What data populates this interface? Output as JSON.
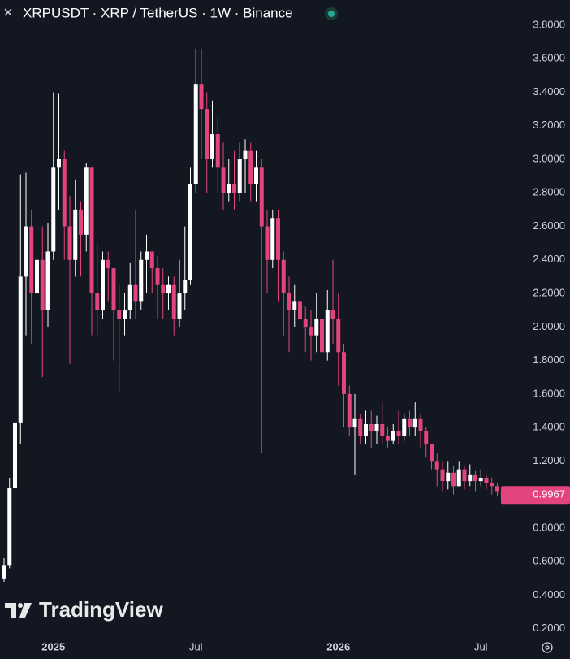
{
  "chart_data": {
    "type": "candlestick",
    "title": "XRPUSDT · XRP / TetherUS · 1W · Binance",
    "watermark": "TradingView",
    "categories": [
      null,
      null,
      null,
      null,
      null,
      null,
      null,
      null,
      null,
      "2025",
      null,
      null,
      null,
      null,
      null,
      null,
      null,
      null,
      null,
      null,
      null,
      null,
      null,
      null,
      null,
      null,
      null,
      null,
      null,
      null,
      null,
      null,
      null,
      null,
      null,
      "Jul",
      null,
      null,
      null,
      null,
      null,
      null,
      null,
      null,
      null,
      null,
      null,
      null,
      null,
      null,
      null,
      null,
      null,
      null,
      null,
      null,
      null,
      null,
      null,
      null,
      null,
      "2026",
      null,
      null,
      null,
      null,
      null,
      null,
      null,
      null,
      null,
      null,
      null,
      null,
      null,
      null,
      null,
      null,
      null,
      null,
      null,
      null,
      null,
      null,
      null,
      null,
      null,
      "Jul",
      null,
      null,
      null,
      null
    ],
    "open": [
      0.5,
      0.58,
      1.04,
      1.43,
      2.3,
      2.6,
      2.2,
      2.4,
      2.1,
      2.45,
      2.95,
      3.0,
      2.6,
      2.4,
      2.7,
      2.55,
      2.95,
      2.2,
      2.1,
      2.4,
      2.35,
      2.1,
      2.05,
      2.1,
      2.25,
      2.15,
      2.4,
      2.45,
      2.35,
      2.25,
      2.2,
      2.25,
      2.05,
      2.2,
      2.28,
      2.85,
      3.45,
      3.3,
      3.0,
      3.15,
      2.95,
      2.8,
      2.85,
      2.8,
      3.0,
      3.05,
      2.85,
      2.95,
      2.6,
      2.4,
      2.65,
      2.4,
      2.2,
      2.1,
      2.15,
      2.05,
      2.0,
      1.95,
      2.05,
      1.85,
      2.1,
      2.05,
      1.85,
      1.6,
      1.4,
      1.45,
      1.35,
      1.42,
      1.38,
      1.42,
      1.35,
      1.32,
      1.38,
      1.35,
      1.45,
      1.4,
      1.45,
      1.38,
      1.3,
      1.2,
      1.15,
      1.08,
      1.13,
      1.05,
      1.15,
      1.08,
      1.12,
      1.08,
      1.1,
      1.07,
      1.05,
      1.02
    ],
    "high": [
      0.62,
      1.1,
      1.62,
      2.91,
      2.92,
      2.7,
      2.45,
      2.6,
      2.62,
      3.4,
      3.39,
      3.05,
      2.78,
      2.88,
      2.75,
      2.98,
      2.95,
      2.5,
      2.45,
      2.45,
      2.35,
      2.25,
      2.2,
      2.38,
      2.7,
      2.45,
      2.55,
      2.45,
      2.42,
      2.35,
      2.3,
      2.3,
      2.4,
      2.6,
      2.95,
      3.66,
      3.66,
      3.4,
      3.35,
      3.25,
      3.1,
      3.0,
      3.05,
      3.1,
      3.12,
      3.1,
      3.05,
      3.0,
      2.7,
      2.7,
      2.7,
      2.45,
      2.3,
      2.25,
      2.2,
      2.12,
      2.1,
      2.2,
      2.05,
      2.22,
      2.4,
      2.2,
      1.9,
      1.65,
      1.6,
      1.48,
      1.5,
      1.5,
      1.47,
      1.55,
      1.4,
      1.42,
      1.5,
      1.48,
      1.5,
      1.55,
      1.48,
      1.4,
      1.3,
      1.25,
      1.2,
      1.2,
      1.17,
      1.2,
      1.17,
      1.18,
      1.14,
      1.15,
      1.12,
      1.1,
      1.07,
      1.03
    ],
    "low": [
      0.48,
      0.56,
      1.0,
      1.3,
      1.95,
      1.9,
      2.0,
      1.7,
      2.0,
      2.4,
      2.7,
      2.4,
      1.78,
      2.3,
      2.3,
      2.45,
      1.95,
      1.95,
      2.05,
      2.15,
      1.8,
      1.61,
      1.95,
      2.05,
      2.05,
      2.1,
      2.2,
      2.2,
      2.05,
      2.05,
      2.1,
      1.95,
      2.0,
      2.1,
      2.25,
      2.8,
      3.0,
      2.8,
      2.95,
      2.8,
      2.7,
      2.75,
      2.7,
      2.75,
      2.8,
      2.75,
      2.75,
      1.25,
      2.2,
      2.35,
      2.15,
      1.95,
      1.85,
      2.0,
      1.9,
      1.85,
      1.8,
      1.85,
      1.78,
      1.8,
      1.9,
      1.65,
      1.4,
      1.35,
      1.12,
      1.3,
      1.3,
      1.28,
      1.3,
      1.3,
      1.28,
      1.3,
      1.3,
      1.32,
      1.35,
      1.35,
      1.28,
      1.22,
      1.15,
      1.05,
      1.02,
      1.03,
      1.0,
      1.05,
      1.03,
      1.05,
      1.02,
      1.05,
      1.03,
      1.0,
      0.99,
      0.98
    ],
    "close": [
      0.58,
      1.04,
      1.43,
      2.3,
      2.6,
      2.2,
      2.4,
      2.1,
      2.45,
      2.95,
      3.0,
      2.6,
      2.4,
      2.7,
      2.55,
      2.95,
      2.2,
      2.1,
      2.4,
      2.35,
      2.1,
      2.05,
      2.1,
      2.25,
      2.15,
      2.4,
      2.45,
      2.35,
      2.25,
      2.2,
      2.25,
      2.05,
      2.2,
      2.28,
      2.85,
      3.45,
      3.3,
      3.0,
      3.15,
      2.95,
      2.8,
      2.85,
      2.8,
      3.0,
      3.05,
      2.85,
      2.95,
      2.6,
      2.4,
      2.65,
      2.4,
      2.2,
      2.1,
      2.15,
      2.05,
      2.0,
      1.95,
      2.05,
      1.85,
      2.1,
      2.05,
      1.85,
      1.6,
      1.4,
      1.45,
      1.35,
      1.42,
      1.38,
      1.42,
      1.35,
      1.32,
      1.38,
      1.35,
      1.45,
      1.4,
      1.45,
      1.38,
      1.3,
      1.2,
      1.15,
      1.08,
      1.13,
      1.05,
      1.15,
      1.08,
      1.12,
      1.08,
      1.1,
      1.07,
      1.05,
      1.02,
      0.9967
    ],
    "last_price": 0.9967,
    "up_color": "#ffffff",
    "down_color": "#e2457d",
    "ylim": [
      0.15,
      3.95
    ],
    "yticks": [
      {
        "value": 0.2,
        "label": "0.2000"
      },
      {
        "value": 0.4,
        "label": "0.4000"
      },
      {
        "value": 0.6,
        "label": "0.6000"
      },
      {
        "value": 0.8,
        "label": "0.8000"
      },
      {
        "value": 1.2,
        "label": "1.2000"
      },
      {
        "value": 1.4,
        "label": "1.4000"
      },
      {
        "value": 1.6,
        "label": "1.6000"
      },
      {
        "value": 1.8,
        "label": "1.8000"
      },
      {
        "value": 2.0,
        "label": "2.0000"
      },
      {
        "value": 2.2,
        "label": "2.2000"
      },
      {
        "value": 2.4,
        "label": "2.4000"
      },
      {
        "value": 2.6,
        "label": "2.6000"
      },
      {
        "value": 2.8,
        "label": "2.8000"
      },
      {
        "value": 3.0,
        "label": "3.0000"
      },
      {
        "value": 3.2,
        "label": "3.2000"
      },
      {
        "value": 3.4,
        "label": "3.4000"
      },
      {
        "value": 3.6,
        "label": "3.6000"
      },
      {
        "value": 3.8,
        "label": "3.8000"
      }
    ]
  }
}
